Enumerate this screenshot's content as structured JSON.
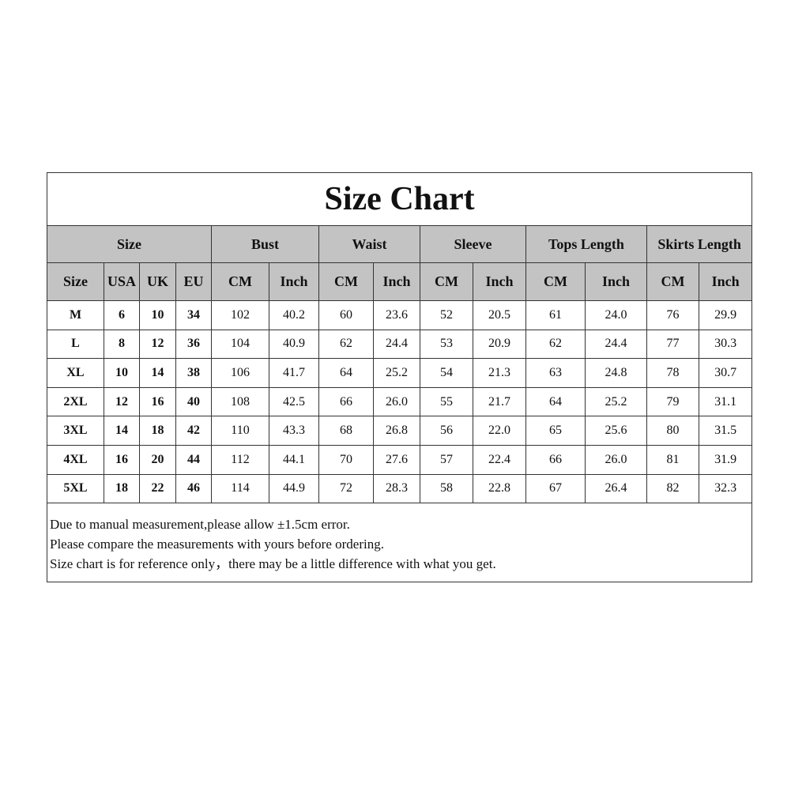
{
  "title": "Size Chart",
  "groups": [
    "Size",
    "Bust",
    "Waist",
    "Sleeve",
    "Tops Length",
    "Skirts Length"
  ],
  "subheaders": [
    "Size",
    "USA",
    "UK",
    "EU",
    "CM",
    "Inch",
    "CM",
    "Inch",
    "CM",
    "Inch",
    "CM",
    "Inch",
    "CM",
    "Inch"
  ],
  "rows": [
    [
      "M",
      "6",
      "10",
      "34",
      "102",
      "40.2",
      "60",
      "23.6",
      "52",
      "20.5",
      "61",
      "24.0",
      "76",
      "29.9"
    ],
    [
      "L",
      "8",
      "12",
      "36",
      "104",
      "40.9",
      "62",
      "24.4",
      "53",
      "20.9",
      "62",
      "24.4",
      "77",
      "30.3"
    ],
    [
      "XL",
      "10",
      "14",
      "38",
      "106",
      "41.7",
      "64",
      "25.2",
      "54",
      "21.3",
      "63",
      "24.8",
      "78",
      "30.7"
    ],
    [
      "2XL",
      "12",
      "16",
      "40",
      "108",
      "42.5",
      "66",
      "26.0",
      "55",
      "21.7",
      "64",
      "25.2",
      "79",
      "31.1"
    ],
    [
      "3XL",
      "14",
      "18",
      "42",
      "110",
      "43.3",
      "68",
      "26.8",
      "56",
      "22.0",
      "65",
      "25.6",
      "80",
      "31.5"
    ],
    [
      "4XL",
      "16",
      "20",
      "44",
      "112",
      "44.1",
      "70",
      "27.6",
      "57",
      "22.4",
      "66",
      "26.0",
      "81",
      "31.9"
    ],
    [
      "5XL",
      "18",
      "22",
      "46",
      "114",
      "44.9",
      "72",
      "28.3",
      "58",
      "22.8",
      "67",
      "26.4",
      "82",
      "32.3"
    ]
  ],
  "notes": [
    "Due to manual measurement,please allow ±1.5cm error.",
    "Please compare the measurements with yours before ordering.",
    "Size chart is for reference only，there may be a little difference with what you get."
  ],
  "colors": {
    "header_bg": "#c3c3c3",
    "border": "#333333"
  }
}
